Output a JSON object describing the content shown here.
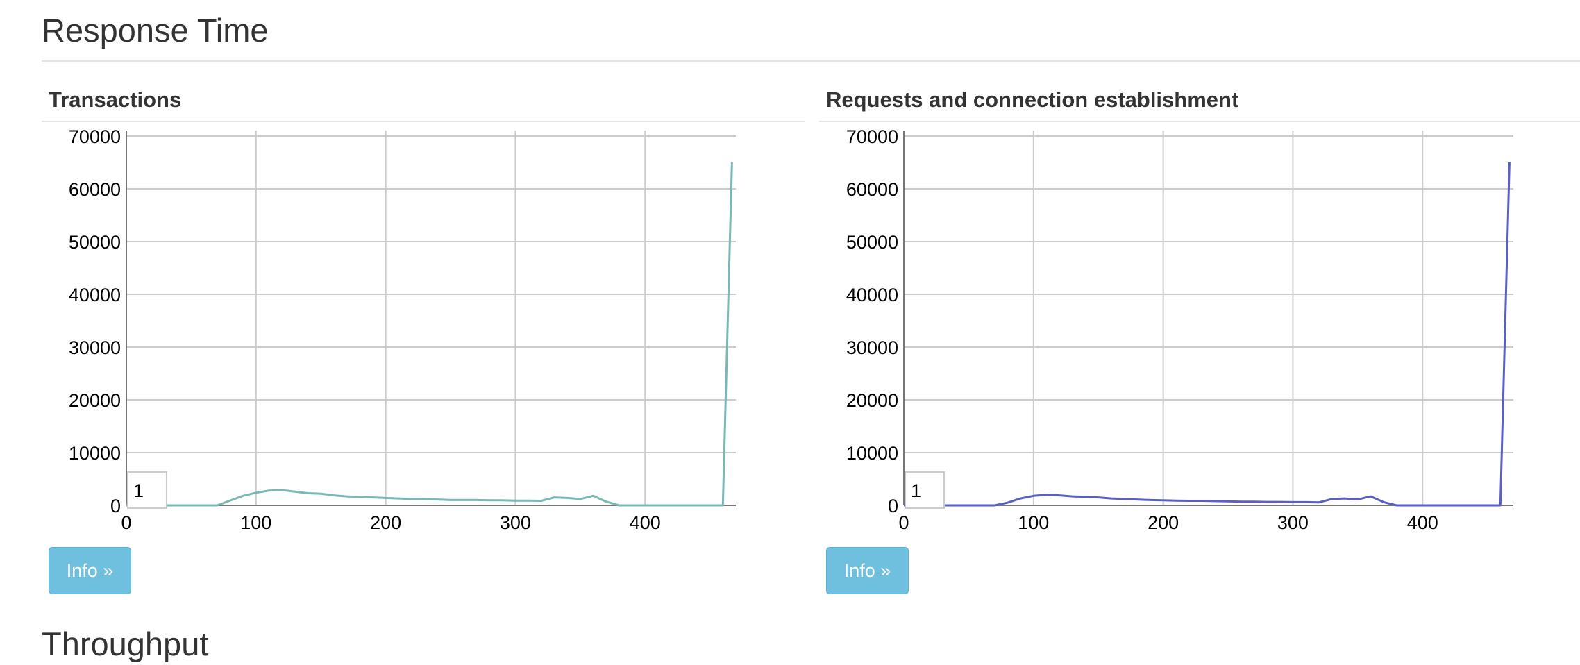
{
  "page": {
    "title": "Response Time",
    "next_section_title": "Throughput"
  },
  "panels": [
    {
      "title": "Transactions",
      "info_label": "Info »",
      "range_value": "1",
      "line_color": "#7ab8b4"
    },
    {
      "title": "Requests and connection establishment",
      "info_label": "Info »",
      "range_value": "1",
      "line_color": "#5a5fc4"
    }
  ],
  "chart_data": [
    {
      "type": "line",
      "title": "Transactions",
      "xlabel": "",
      "ylabel": "",
      "xlim": [
        0,
        470
      ],
      "ylim": [
        0,
        70000
      ],
      "x_ticks": [
        0,
        100,
        200,
        300,
        400
      ],
      "y_ticks": [
        0,
        10000,
        20000,
        30000,
        40000,
        50000,
        60000,
        70000
      ],
      "grid": true,
      "series": [
        {
          "color": "#7ab8b4",
          "x": [
            0,
            10,
            20,
            30,
            40,
            50,
            60,
            70,
            80,
            90,
            100,
            110,
            120,
            130,
            140,
            150,
            160,
            170,
            180,
            190,
            200,
            210,
            220,
            230,
            240,
            250,
            260,
            270,
            280,
            290,
            300,
            310,
            320,
            330,
            340,
            350,
            360,
            370,
            380,
            390,
            400,
            410,
            420,
            430,
            440,
            450,
            460,
            467
          ],
          "y": [
            0,
            0,
            0,
            0,
            0,
            0,
            0,
            0,
            900,
            1800,
            2400,
            2800,
            2900,
            2600,
            2300,
            2200,
            1900,
            1700,
            1600,
            1500,
            1400,
            1300,
            1200,
            1200,
            1100,
            1000,
            1000,
            1000,
            950,
            950,
            900,
            900,
            850,
            1500,
            1400,
            1200,
            1800,
            700,
            0,
            0,
            0,
            0,
            0,
            0,
            0,
            0,
            0,
            65000
          ]
        }
      ]
    },
    {
      "type": "line",
      "title": "Requests and connection establishment",
      "xlabel": "",
      "ylabel": "",
      "xlim": [
        0,
        470
      ],
      "ylim": [
        0,
        70000
      ],
      "x_ticks": [
        0,
        100,
        200,
        300,
        400
      ],
      "y_ticks": [
        0,
        10000,
        20000,
        30000,
        40000,
        50000,
        60000,
        70000
      ],
      "grid": true,
      "series": [
        {
          "color": "#5a5fc4",
          "x": [
            0,
            10,
            20,
            30,
            40,
            50,
            60,
            70,
            80,
            90,
            100,
            110,
            120,
            130,
            140,
            150,
            160,
            170,
            180,
            190,
            200,
            210,
            220,
            230,
            240,
            250,
            260,
            270,
            280,
            290,
            300,
            310,
            320,
            330,
            340,
            350,
            360,
            370,
            380,
            390,
            400,
            410,
            420,
            430,
            440,
            450,
            460,
            467
          ],
          "y": [
            0,
            0,
            0,
            0,
            0,
            0,
            0,
            0,
            500,
            1300,
            1800,
            2000,
            1900,
            1700,
            1600,
            1500,
            1300,
            1200,
            1100,
            1000,
            950,
            900,
            850,
            850,
            800,
            750,
            700,
            700,
            650,
            650,
            600,
            600,
            550,
            1200,
            1300,
            1100,
            1700,
            600,
            0,
            0,
            0,
            0,
            0,
            0,
            0,
            0,
            0,
            65000
          ]
        }
      ]
    }
  ]
}
